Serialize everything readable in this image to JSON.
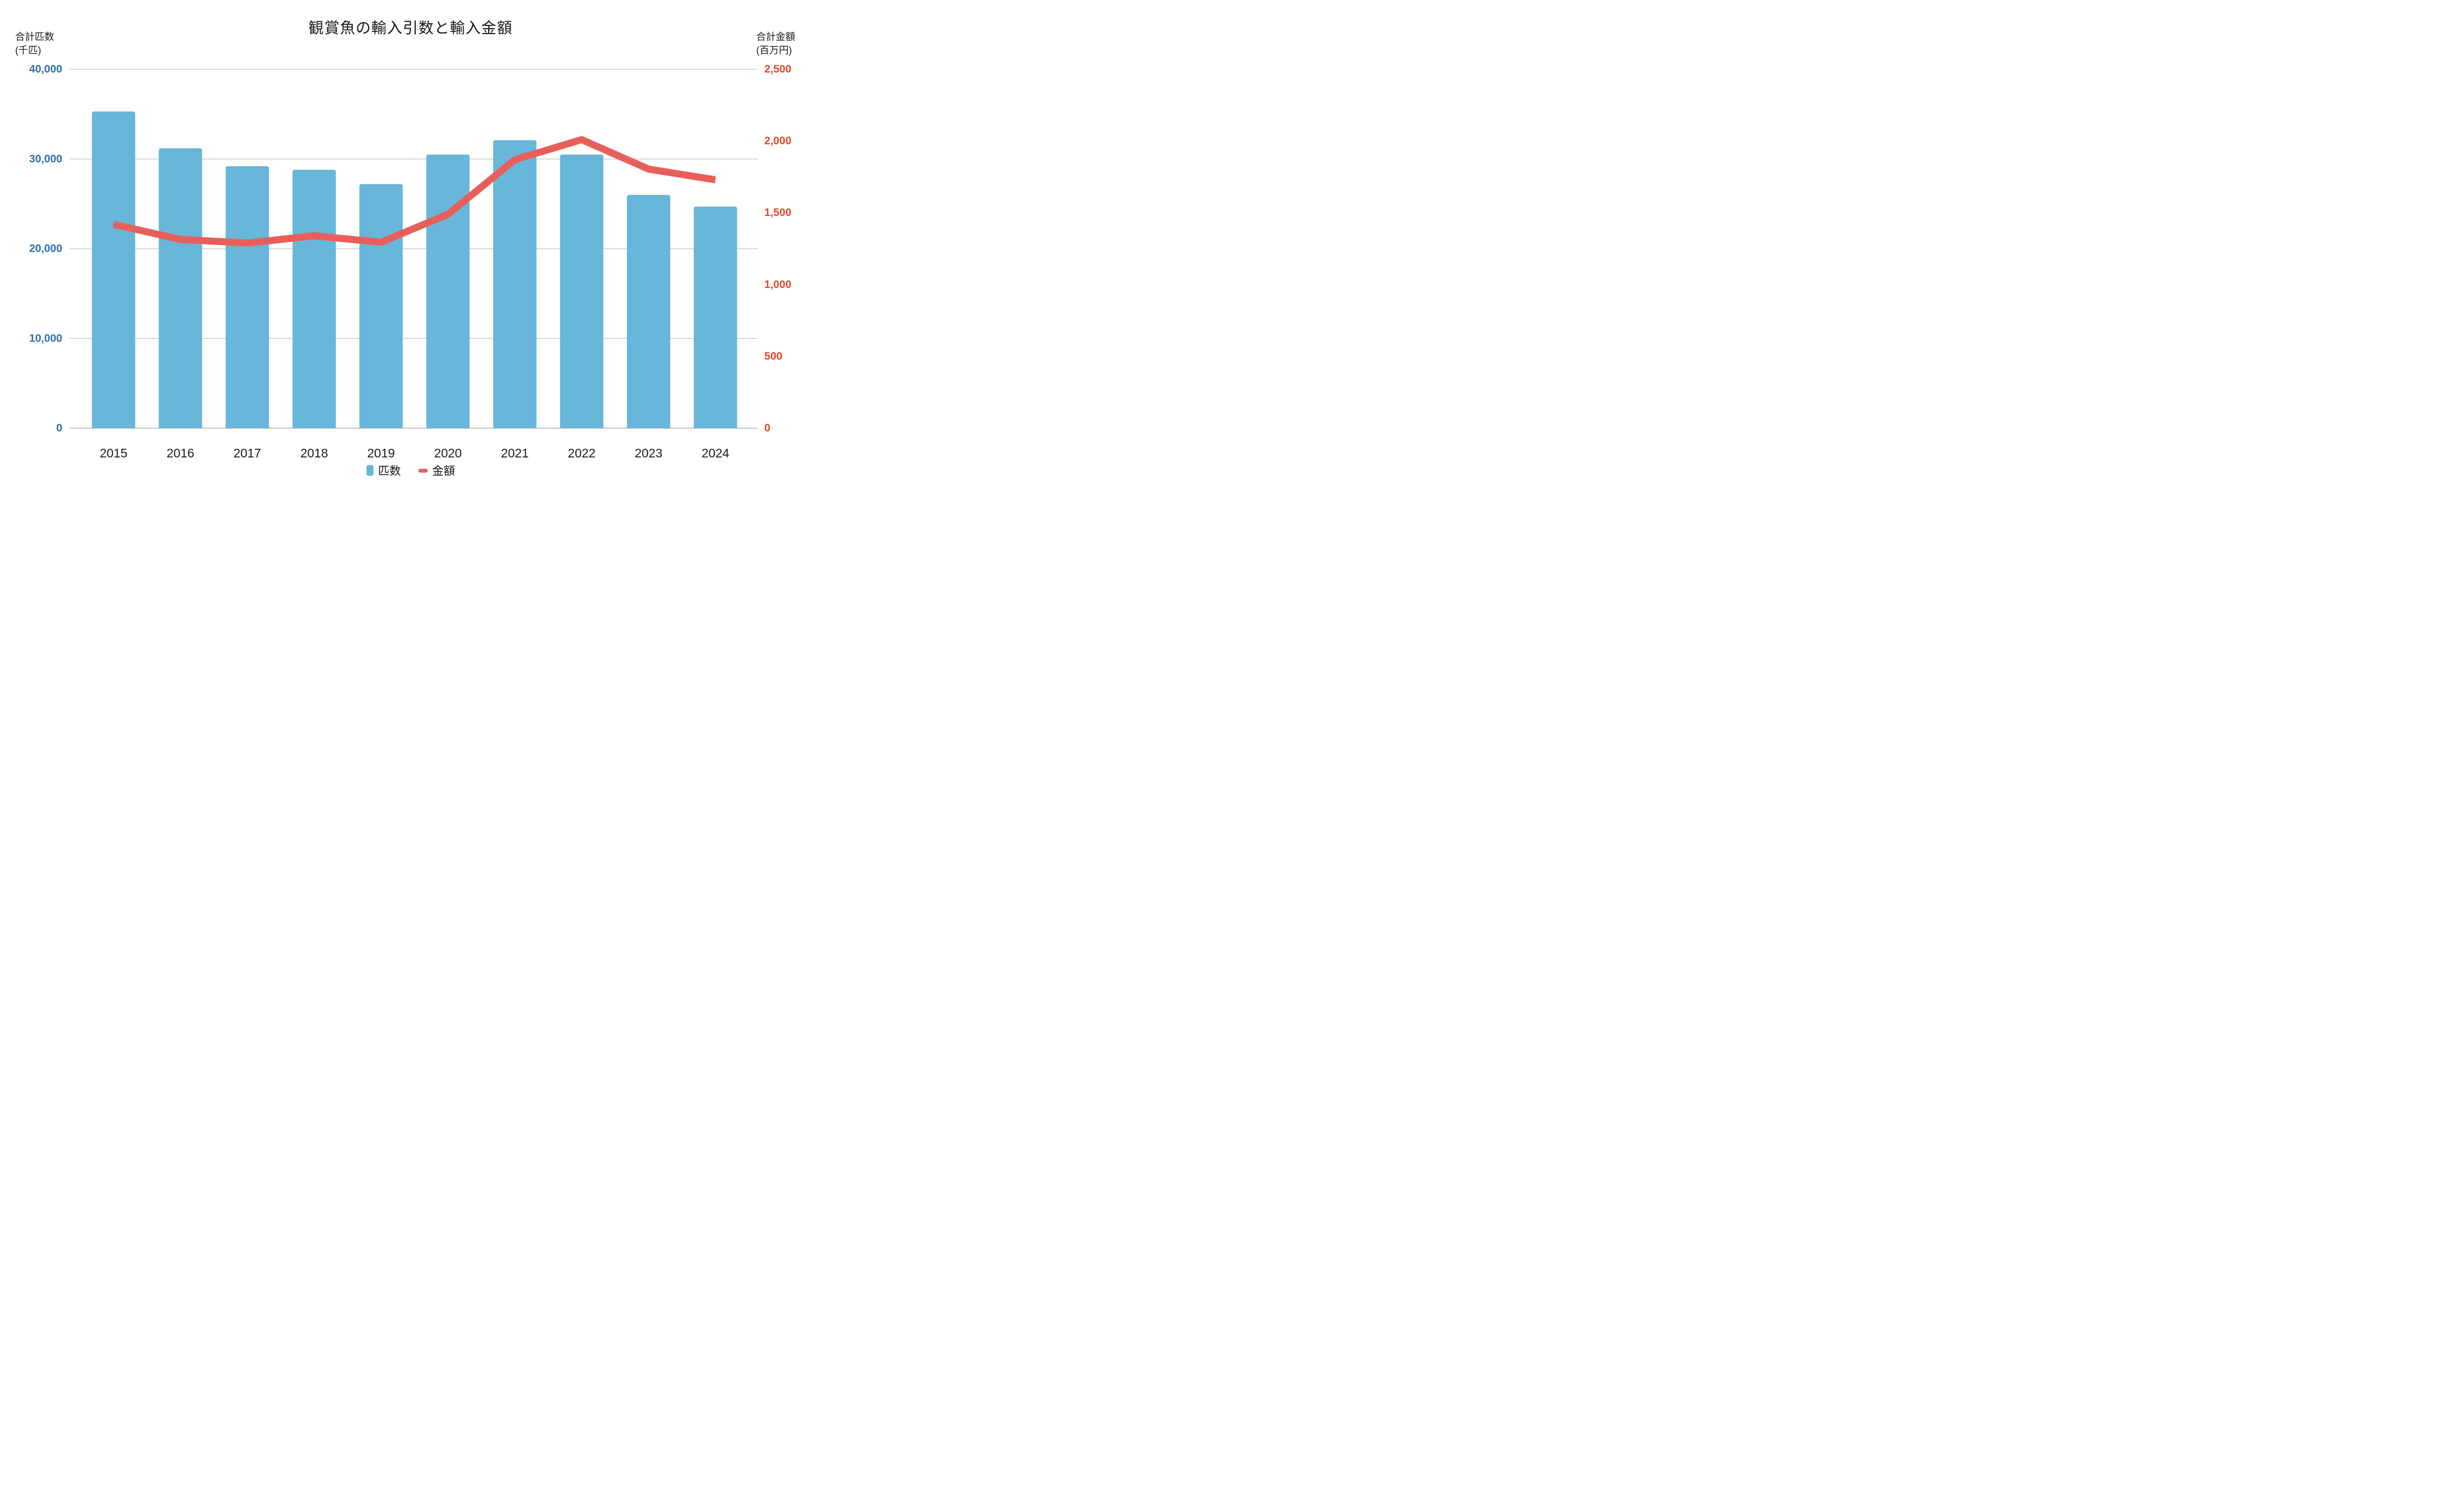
{
  "title": "観賞魚の輸入引数と輸入金額",
  "left_axis": {
    "header": "合計匹数\n(千匹)",
    "tick_color": "#2e6fad",
    "ticks": [
      0,
      10000,
      20000,
      30000,
      40000
    ],
    "max": 40000
  },
  "right_axis": {
    "header": "合計金額\n(百万円)",
    "tick_color": "#e5472b",
    "ticks": [
      0,
      500,
      1000,
      1500,
      2000,
      2500
    ],
    "max": 2500
  },
  "legend": {
    "bar_label": "匹数",
    "line_label": "金額"
  },
  "colors": {
    "bar": "#68b6d9",
    "line": "#e85f5a",
    "gridline": "#cccccc",
    "x_label": "#1a1a1a"
  },
  "chart_data": {
    "type": "bar+line combo",
    "title": "観賞魚の輸入引数と輸入金額",
    "categories": [
      "2015",
      "2016",
      "2017",
      "2018",
      "2019",
      "2020",
      "2021",
      "2022",
      "2023",
      "2024"
    ],
    "series": [
      {
        "name": "匹数",
        "type": "bar",
        "axis": "left",
        "unit": "千匹",
        "color": "#68b6d9",
        "values": [
          35300,
          31200,
          29200,
          28800,
          27200,
          30500,
          32100,
          30500,
          26000,
          24700
        ]
      },
      {
        "name": "金額",
        "type": "line",
        "axis": "right",
        "unit": "百万円",
        "color": "#e85f5a",
        "values": [
          1420,
          1315,
          1290,
          1340,
          1295,
          1490,
          1870,
          2010,
          1805,
          1730
        ]
      }
    ],
    "left_axis_label": "合計匹数(千匹)",
    "right_axis_label": "合計金額(百万円)",
    "left_ylim": [
      0,
      40000
    ],
    "right_ylim": [
      0,
      2500
    ],
    "left_ticks": [
      0,
      10000,
      20000,
      30000,
      40000
    ],
    "right_ticks": [
      0,
      500,
      1000,
      1500,
      2000,
      2500
    ],
    "grid": "horizontal only",
    "legend_position": "bottom center"
  }
}
